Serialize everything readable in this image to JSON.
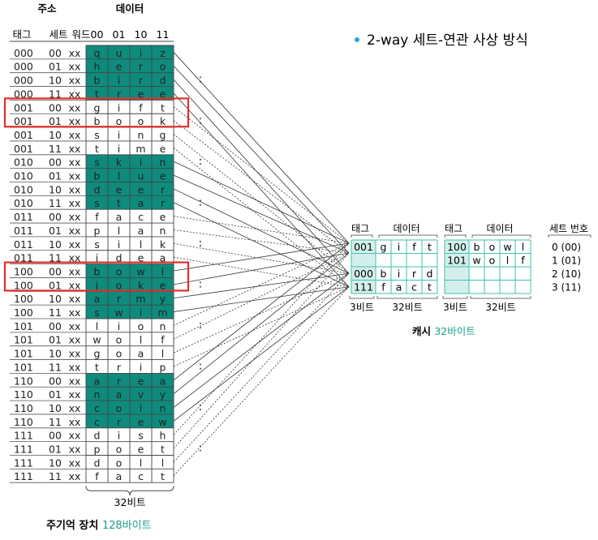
{
  "bullet": {
    "text": "2-way 세트-연관 사상 방식"
  },
  "memory": {
    "address_label": "주소",
    "data_label": "데이터",
    "col_headers": [
      "태그",
      "세트",
      "워드"
    ],
    "word_headers": [
      "00",
      "01",
      "10",
      "11"
    ],
    "width_label": "32비트",
    "caption_main": "주기억 장치",
    "caption_size": "128바이트",
    "rows": [
      {
        "tag": "000",
        "set": "00",
        "word": "xx",
        "d": [
          "q",
          "u",
          "i",
          "z"
        ],
        "hl": true
      },
      {
        "tag": "000",
        "set": "01",
        "word": "xx",
        "d": [
          "h",
          "e",
          "r",
          "o"
        ],
        "hl": true
      },
      {
        "tag": "000",
        "set": "10",
        "word": "xx",
        "d": [
          "b",
          "i",
          "r",
          "d"
        ],
        "hl": true
      },
      {
        "tag": "000",
        "set": "11",
        "word": "xx",
        "d": [
          "t",
          "r",
          "e",
          "e"
        ],
        "hl": true
      },
      {
        "tag": "001",
        "set": "00",
        "word": "xx",
        "d": [
          "g",
          "i",
          "f",
          "t"
        ],
        "hl": false
      },
      {
        "tag": "001",
        "set": "01",
        "word": "xx",
        "d": [
          "b",
          "o",
          "o",
          "k"
        ],
        "hl": false
      },
      {
        "tag": "001",
        "set": "10",
        "word": "xx",
        "d": [
          "s",
          "i",
          "n",
          "g"
        ],
        "hl": false
      },
      {
        "tag": "001",
        "set": "11",
        "word": "xx",
        "d": [
          "t",
          "i",
          "m",
          "e"
        ],
        "hl": false
      },
      {
        "tag": "010",
        "set": "00",
        "word": "xx",
        "d": [
          "s",
          "k",
          "i",
          "n"
        ],
        "hl": true
      },
      {
        "tag": "010",
        "set": "01",
        "word": "xx",
        "d": [
          "b",
          "l",
          "u",
          "e"
        ],
        "hl": true
      },
      {
        "tag": "010",
        "set": "10",
        "word": "xx",
        "d": [
          "d",
          "e",
          "e",
          "r"
        ],
        "hl": true
      },
      {
        "tag": "010",
        "set": "11",
        "word": "xx",
        "d": [
          "s",
          "t",
          "a",
          "r"
        ],
        "hl": true
      },
      {
        "tag": "011",
        "set": "00",
        "word": "xx",
        "d": [
          "f",
          "a",
          "c",
          "e"
        ],
        "hl": false
      },
      {
        "tag": "011",
        "set": "01",
        "word": "xx",
        "d": [
          "p",
          "l",
          "a",
          "n"
        ],
        "hl": false
      },
      {
        "tag": "011",
        "set": "10",
        "word": "xx",
        "d": [
          "s",
          "i",
          "l",
          "k"
        ],
        "hl": false
      },
      {
        "tag": "011",
        "set": "11",
        "word": "xx",
        "d": [
          "i",
          "d",
          "e",
          "a"
        ],
        "hl": false
      },
      {
        "tag": "100",
        "set": "00",
        "word": "xx",
        "d": [
          "b",
          "o",
          "w",
          "l"
        ],
        "hl": true
      },
      {
        "tag": "100",
        "set": "01",
        "word": "xx",
        "d": [
          "j",
          "o",
          "k",
          "e"
        ],
        "hl": true
      },
      {
        "tag": "100",
        "set": "10",
        "word": "xx",
        "d": [
          "a",
          "r",
          "m",
          "y"
        ],
        "hl": true
      },
      {
        "tag": "100",
        "set": "11",
        "word": "xx",
        "d": [
          "s",
          "w",
          "i",
          "m"
        ],
        "hl": true
      },
      {
        "tag": "101",
        "set": "00",
        "word": "xx",
        "d": [
          "l",
          "i",
          "o",
          "n"
        ],
        "hl": false
      },
      {
        "tag": "101",
        "set": "01",
        "word": "xx",
        "d": [
          "w",
          "o",
          "l",
          "f"
        ],
        "hl": false
      },
      {
        "tag": "101",
        "set": "10",
        "word": "xx",
        "d": [
          "g",
          "o",
          "a",
          "l"
        ],
        "hl": false
      },
      {
        "tag": "101",
        "set": "11",
        "word": "xx",
        "d": [
          "t",
          "r",
          "i",
          "p"
        ],
        "hl": false
      },
      {
        "tag": "110",
        "set": "00",
        "word": "xx",
        "d": [
          "a",
          "r",
          "e",
          "a"
        ],
        "hl": true
      },
      {
        "tag": "110",
        "set": "01",
        "word": "xx",
        "d": [
          "n",
          "a",
          "v",
          "y"
        ],
        "hl": true
      },
      {
        "tag": "110",
        "set": "10",
        "word": "xx",
        "d": [
          "c",
          "o",
          "i",
          "n"
        ],
        "hl": true
      },
      {
        "tag": "110",
        "set": "11",
        "word": "xx",
        "d": [
          "c",
          "r",
          "e",
          "w"
        ],
        "hl": true
      },
      {
        "tag": "111",
        "set": "00",
        "word": "xx",
        "d": [
          "d",
          "i",
          "s",
          "h"
        ],
        "hl": false
      },
      {
        "tag": "111",
        "set": "01",
        "word": "xx",
        "d": [
          "p",
          "o",
          "e",
          "t"
        ],
        "hl": false
      },
      {
        "tag": "111",
        "set": "10",
        "word": "xx",
        "d": [
          "d",
          "o",
          "l",
          "l"
        ],
        "hl": false
      },
      {
        "tag": "111",
        "set": "11",
        "word": "xx",
        "d": [
          "f",
          "a",
          "c",
          "t"
        ],
        "hl": false
      }
    ],
    "boxed_rows": [
      4,
      16
    ],
    "dots": ":"
  },
  "cache": {
    "headers": [
      "태그",
      "데이터",
      "태그",
      "데이터",
      "세트 번호"
    ],
    "way1": [
      {
        "tag": "001",
        "d": [
          "g",
          "i",
          "f",
          "t"
        ]
      },
      {
        "tag": "",
        "d": [
          "",
          "",
          "",
          ""
        ]
      },
      {
        "tag": "000",
        "d": [
          "b",
          "i",
          "r",
          "d"
        ]
      },
      {
        "tag": "111",
        "d": [
          "f",
          "a",
          "c",
          "t"
        ]
      }
    ],
    "way2": [
      {
        "tag": "100",
        "d": [
          "b",
          "o",
          "w",
          "l"
        ]
      },
      {
        "tag": "101",
        "d": [
          "w",
          "o",
          "l",
          "f"
        ]
      },
      {
        "tag": "",
        "d": [
          "",
          "",
          "",
          ""
        ]
      },
      {
        "tag": "",
        "d": [
          "",
          "",
          "",
          ""
        ]
      }
    ],
    "set_numbers": [
      "0 (00)",
      "1 (01)",
      "2 (10)",
      "3 (11)"
    ],
    "bits_labels": [
      "3비트",
      "32비트",
      "3비트",
      "32비트"
    ],
    "caption_main": "캐시",
    "caption_size": "32바이트"
  },
  "colors": {
    "teal": "#0e8b7d",
    "teal_light": "#d4efeb",
    "teal_border": "#3cc2b2",
    "red": "#e0302a",
    "bullet": "#2aa9d6",
    "caption_teal": "#1a9e8e"
  }
}
